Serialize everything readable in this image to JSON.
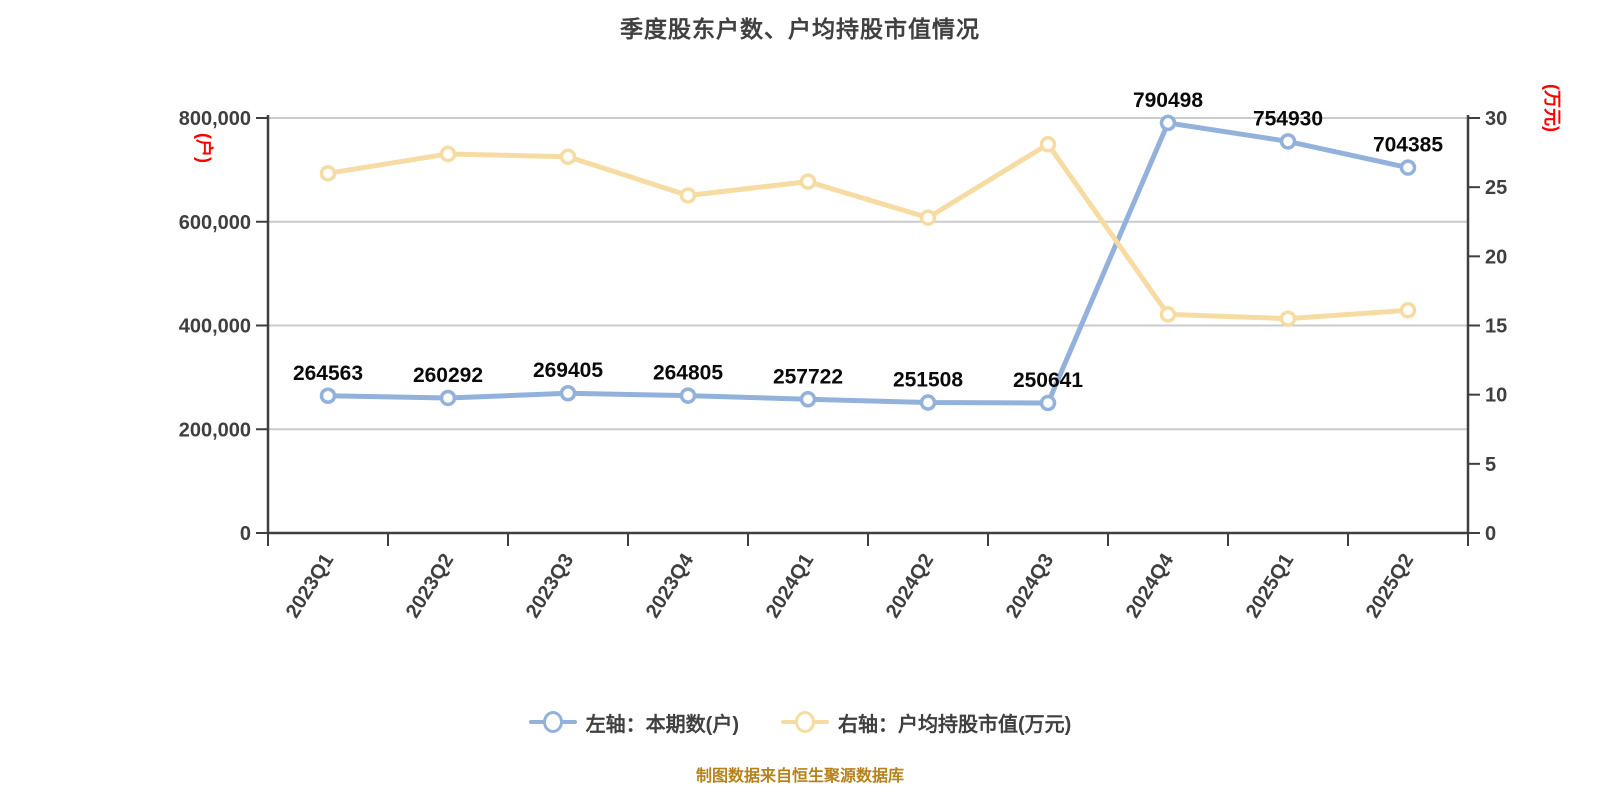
{
  "title": "季度股东户数、户均持股市值情况",
  "footer_note": "制图数据来自恒生聚源数据库",
  "colors": {
    "shareholders_line": "#92B1DB",
    "avg_value_line": "#F6DCA2",
    "marker_fill": "#FFFFFF",
    "axis_line": "#3F3F3F",
    "gridline": "#CBCBCB",
    "tick_text": "#3F3F3F",
    "data_label_text": "#0A0A0A",
    "axis_unit_text": "#FF0000",
    "title_text": "#404040",
    "legend_text": "#404040",
    "footer_text": "#B5831C",
    "background": "#FFFFFF"
  },
  "left_axis": {
    "unit": "(户)",
    "tick_labels": [
      "800,000",
      "600,000",
      "400,000",
      "200,000",
      "0"
    ],
    "tick_values": [
      800000,
      600000,
      400000,
      200000,
      0
    ]
  },
  "right_axis": {
    "unit": "(万元)",
    "tick_labels": [
      "30",
      "25",
      "20",
      "15",
      "10",
      "5",
      "0"
    ],
    "tick_values": [
      30,
      25,
      20,
      15,
      10,
      5,
      0
    ]
  },
  "legend": [
    {
      "label": "左轴：本期数(户)",
      "color": "#92B1DB"
    },
    {
      "label": "右轴：户均持股市值(万元)",
      "color": "#F6DCA2"
    }
  ],
  "chart_data": {
    "type": "line",
    "categories": [
      "2023Q1",
      "2023Q2",
      "2023Q3",
      "2023Q4",
      "2024Q1",
      "2024Q2",
      "2024Q3",
      "2024Q4",
      "2025Q1",
      "2025Q2"
    ],
    "series": [
      {
        "name": "左轴：本期数(户)",
        "axis": "left",
        "color": "#92B1DB",
        "show_point_labels": true,
        "values": [
          264563,
          260292,
          269405,
          264805,
          257722,
          251508,
          250641,
          790498,
          754930,
          704385
        ]
      },
      {
        "name": "右轴：户均持股市值(万元)",
        "axis": "right",
        "color": "#F6DCA2",
        "show_point_labels": false,
        "values": [
          26.0,
          27.4,
          27.2,
          24.4,
          25.4,
          22.8,
          28.1,
          15.8,
          15.5,
          16.1
        ]
      }
    ],
    "left_ylim": [
      0,
      800000
    ],
    "right_ylim": [
      0,
      30
    ],
    "grid": true,
    "legend_position": "bottom",
    "x_label_rotation_deg": -58
  }
}
